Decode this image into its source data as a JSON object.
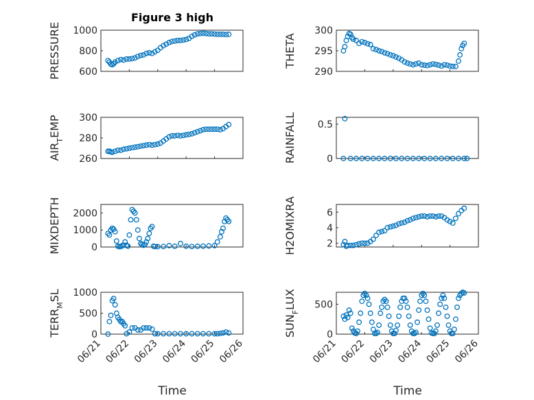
{
  "title": "Figure 3 high",
  "colors": {
    "marker": "#0072BD",
    "axis": "#262626",
    "grid": "#d9d9d9"
  },
  "chart_data": [
    {
      "type": "scatter",
      "ylabel_main": "PRESSURE",
      "ylabel_sub": "",
      "ylabel_rest": "",
      "ylim": [
        600,
        1000
      ],
      "yticks": [
        600,
        800,
        1000
      ],
      "xlim": [
        0,
        5
      ],
      "xticks": [
        "06/21",
        "06/22",
        "06/23",
        "06/24",
        "06/25",
        "06/26"
      ],
      "x": [
        0.25,
        0.3,
        0.35,
        0.4,
        0.45,
        0.5,
        0.6,
        0.7,
        0.8,
        0.9,
        1.0,
        1.1,
        1.2,
        1.3,
        1.4,
        1.5,
        1.6,
        1.7,
        1.8,
        1.9,
        2.0,
        2.1,
        2.2,
        2.3,
        2.4,
        2.5,
        2.6,
        2.7,
        2.8,
        2.9,
        3.0,
        3.1,
        3.2,
        3.3,
        3.4,
        3.5,
        3.6,
        3.7,
        3.8,
        3.9,
        4.0,
        4.1,
        4.2,
        4.3,
        4.4,
        4.5
      ],
      "y": [
        705,
        690,
        670,
        665,
        675,
        690,
        705,
        715,
        710,
        720,
        720,
        725,
        730,
        745,
        755,
        760,
        775,
        780,
        775,
        790,
        805,
        830,
        850,
        865,
        880,
        890,
        895,
        900,
        900,
        905,
        910,
        920,
        940,
        955,
        965,
        968,
        970,
        968,
        965,
        965,
        962,
        960,
        960,
        960,
        958,
        960
      ]
    },
    {
      "type": "scatter",
      "ylabel_main": "THETA",
      "ylabel_sub": "",
      "ylabel_rest": "",
      "ylim": [
        290,
        300
      ],
      "yticks": [
        290,
        295,
        300
      ],
      "xlim": [
        0,
        5
      ],
      "xticks": [
        "06/21",
        "06/22",
        "06/23",
        "06/24",
        "06/25",
        "06/26"
      ],
      "x": [
        0.25,
        0.3,
        0.35,
        0.4,
        0.45,
        0.5,
        0.55,
        0.6,
        0.7,
        0.8,
        0.9,
        1.0,
        1.1,
        1.2,
        1.3,
        1.4,
        1.5,
        1.6,
        1.7,
        1.8,
        1.9,
        2.0,
        2.1,
        2.2,
        2.3,
        2.4,
        2.5,
        2.6,
        2.7,
        2.8,
        2.9,
        3.0,
        3.1,
        3.2,
        3.3,
        3.4,
        3.5,
        3.6,
        3.7,
        3.8,
        3.9,
        4.0,
        4.1,
        4.2,
        4.3,
        4.35,
        4.4,
        4.45,
        4.5
      ],
      "y": [
        295,
        296,
        297.5,
        298.5,
        299.2,
        299,
        298.2,
        297.8,
        297.5,
        296.8,
        297.2,
        297,
        296.7,
        296.5,
        295.5,
        295.3,
        295,
        294.8,
        294.5,
        294.3,
        294,
        293.8,
        293.5,
        293.2,
        292.8,
        292.3,
        292,
        291.8,
        291.6,
        291.8,
        292,
        291.6,
        291.5,
        291.4,
        291.6,
        291.8,
        291.7,
        291.5,
        291.3,
        291.6,
        291.5,
        291.3,
        291.2,
        291.2,
        292.5,
        294,
        295.5,
        296.3,
        296.8
      ]
    },
    {
      "type": "scatter",
      "ylabel_main": "AIR",
      "ylabel_sub": "T",
      "ylabel_rest": "EMP",
      "ylim": [
        260,
        300
      ],
      "yticks": [
        260,
        280,
        300
      ],
      "xlim": [
        0,
        5
      ],
      "xticks": [
        "06/21",
        "06/22",
        "06/23",
        "06/24",
        "06/25",
        "06/26"
      ],
      "x": [
        0.25,
        0.3,
        0.35,
        0.4,
        0.5,
        0.6,
        0.7,
        0.8,
        0.9,
        1.0,
        1.1,
        1.2,
        1.3,
        1.4,
        1.5,
        1.6,
        1.7,
        1.8,
        1.9,
        2.0,
        2.1,
        2.2,
        2.3,
        2.4,
        2.5,
        2.6,
        2.7,
        2.8,
        2.9,
        3.0,
        3.1,
        3.2,
        3.3,
        3.4,
        3.5,
        3.6,
        3.7,
        3.8,
        3.9,
        4.0,
        4.1,
        4.2,
        4.3,
        4.4,
        4.5
      ],
      "y": [
        267,
        267,
        266.5,
        266,
        267,
        268,
        268,
        269,
        269.5,
        270,
        270.5,
        271,
        271.5,
        272,
        272.5,
        273,
        273.5,
        273,
        273.5,
        274,
        275,
        277,
        279,
        281,
        282,
        282,
        282.5,
        282,
        282.5,
        283,
        283.5,
        284,
        285,
        286,
        287,
        288,
        288.5,
        288.5,
        288.5,
        288.5,
        288.5,
        288,
        289,
        291,
        293
      ]
    },
    {
      "type": "scatter",
      "ylabel_main": "RAINFALL",
      "ylabel_sub": "",
      "ylabel_rest": "",
      "ylim": [
        0,
        0.6
      ],
      "yticks": [
        0,
        0.5
      ],
      "xlim": [
        0,
        5
      ],
      "xticks": [
        "06/21",
        "06/22",
        "06/23",
        "06/24",
        "06/25",
        "06/26"
      ],
      "x": [
        0.25,
        0.3,
        0.5,
        0.7,
        0.9,
        1.1,
        1.3,
        1.5,
        1.7,
        1.9,
        2.1,
        2.3,
        2.5,
        2.7,
        2.9,
        3.1,
        3.3,
        3.5,
        3.7,
        3.9,
        4.1,
        4.3,
        4.5,
        4.6
      ],
      "y": [
        0,
        0.58,
        0,
        0,
        0,
        0,
        0,
        0,
        0,
        0,
        0,
        0,
        0,
        0,
        0,
        0,
        0,
        0,
        0,
        0,
        0,
        0,
        0,
        0
      ]
    },
    {
      "type": "scatter",
      "ylabel_main": "MIXDEPTH",
      "ylabel_sub": "",
      "ylabel_rest": "",
      "ylim": [
        0,
        2500
      ],
      "yticks": [
        0,
        1000,
        2000
      ],
      "xlim": [
        0,
        5
      ],
      "xticks": [
        "06/21",
        "06/22",
        "06/23",
        "06/24",
        "06/25",
        "06/26"
      ],
      "x": [
        0.25,
        0.3,
        0.35,
        0.4,
        0.45,
        0.5,
        0.55,
        0.6,
        0.65,
        0.7,
        0.75,
        0.8,
        0.85,
        0.9,
        0.95,
        1.0,
        1.05,
        1.1,
        1.15,
        1.2,
        1.25,
        1.3,
        1.35,
        1.4,
        1.45,
        1.5,
        1.55,
        1.6,
        1.65,
        1.7,
        1.75,
        1.8,
        1.85,
        1.9,
        2.0,
        2.2,
        2.4,
        2.6,
        2.8,
        3.0,
        3.2,
        3.4,
        3.6,
        3.8,
        4.0,
        4.1,
        4.2,
        4.25,
        4.3,
        4.35,
        4.4,
        4.45,
        4.5
      ],
      "y": [
        800,
        700,
        1000,
        1100,
        1050,
        900,
        350,
        50,
        20,
        30,
        80,
        100,
        300,
        100,
        50,
        700,
        1600,
        2200,
        2100,
        2000,
        1600,
        1000,
        500,
        200,
        150,
        100,
        150,
        300,
        500,
        800,
        1100,
        1200,
        50,
        30,
        20,
        30,
        80,
        40,
        200,
        50,
        30,
        40,
        50,
        60,
        80,
        300,
        600,
        900,
        1100,
        1500,
        1700,
        1600,
        1500
      ]
    },
    {
      "type": "scatter",
      "ylabel_main": "H2OMIXRA",
      "ylabel_sub": "",
      "ylabel_rest": "",
      "ylim": [
        1.5,
        7
      ],
      "yticks": [
        2,
        4,
        6
      ],
      "xlim": [
        0,
        5
      ],
      "xticks": [
        "06/21",
        "06/22",
        "06/23",
        "06/24",
        "06/25",
        "06/26"
      ],
      "x": [
        0.25,
        0.3,
        0.35,
        0.4,
        0.5,
        0.6,
        0.7,
        0.8,
        0.9,
        1.0,
        1.1,
        1.2,
        1.3,
        1.4,
        1.5,
        1.6,
        1.7,
        1.8,
        1.9,
        2.0,
        2.1,
        2.2,
        2.3,
        2.4,
        2.5,
        2.6,
        2.7,
        2.8,
        2.9,
        3.0,
        3.1,
        3.2,
        3.3,
        3.4,
        3.5,
        3.6,
        3.7,
        3.8,
        3.9,
        4.0,
        4.1,
        4.2,
        4.3,
        4.4,
        4.5
      ],
      "y": [
        1.8,
        2.2,
        1.6,
        1.7,
        1.7,
        1.7,
        1.8,
        1.9,
        2.0,
        2.0,
        2.0,
        2.2,
        2.5,
        3.0,
        3.4,
        3.5,
        3.6,
        4.0,
        4.1,
        4.2,
        4.3,
        4.5,
        4.6,
        4.7,
        4.9,
        5.0,
        5.2,
        5.3,
        5.4,
        5.5,
        5.5,
        5.4,
        5.5,
        5.5,
        5.4,
        5.5,
        5.5,
        5.3,
        5.0,
        4.8,
        4.6,
        5.2,
        5.8,
        6.2,
        6.5
      ]
    },
    {
      "type": "scatter",
      "ylabel_main": "TERR",
      "ylabel_sub": "M",
      "ylabel_rest": "SL",
      "ylim": [
        0,
        1000
      ],
      "yticks": [
        0,
        500,
        1000
      ],
      "xlim": [
        0,
        5
      ],
      "xticks": [
        "06/21",
        "06/22",
        "06/23",
        "06/24",
        "06/25",
        "06/26"
      ],
      "x": [
        0.25,
        0.3,
        0.35,
        0.4,
        0.45,
        0.5,
        0.55,
        0.6,
        0.65,
        0.7,
        0.75,
        0.8,
        0.85,
        0.9,
        1.0,
        1.1,
        1.2,
        1.3,
        1.4,
        1.5,
        1.6,
        1.7,
        1.8,
        1.9,
        2.0,
        2.2,
        2.4,
        2.6,
        2.8,
        3.0,
        3.2,
        3.4,
        3.6,
        3.8,
        4.0,
        4.1,
        4.2,
        4.3,
        4.4,
        4.5
      ],
      "y": [
        0,
        300,
        450,
        800,
        850,
        700,
        500,
        400,
        350,
        300,
        300,
        250,
        200,
        10,
        50,
        150,
        150,
        100,
        100,
        150,
        150,
        150,
        120,
        10,
        10,
        10,
        10,
        10,
        10,
        10,
        10,
        10,
        10,
        10,
        10,
        10,
        20,
        30,
        50,
        30
      ]
    },
    {
      "type": "scatter",
      "ylabel_main": "SUN",
      "ylabel_sub": "F",
      "ylabel_rest": "LUX",
      "ylim": [
        0,
        700
      ],
      "yticks": [
        0,
        500
      ],
      "xlim": [
        0,
        5
      ],
      "xticks": [
        "06/21",
        "06/22",
        "06/23",
        "06/24",
        "06/25",
        "06/26"
      ],
      "x": [
        0.25,
        0.3,
        0.35,
        0.4,
        0.45,
        0.5,
        0.55,
        0.6,
        0.65,
        0.7,
        0.75,
        0.8,
        0.85,
        0.9,
        0.95,
        1.0,
        1.05,
        1.1,
        1.15,
        1.2,
        1.25,
        1.3,
        1.35,
        1.4,
        1.45,
        1.5,
        1.55,
        1.6,
        1.65,
        1.7,
        1.75,
        1.8,
        1.85,
        1.9,
        1.95,
        2.0,
        2.05,
        2.1,
        2.15,
        2.2,
        2.25,
        2.3,
        2.35,
        2.4,
        2.45,
        2.5,
        2.55,
        2.6,
        2.65,
        2.7,
        2.75,
        2.8,
        2.85,
        2.9,
        2.95,
        3.0,
        3.05,
        3.1,
        3.15,
        3.2,
        3.25,
        3.3,
        3.35,
        3.4,
        3.45,
        3.5,
        3.55,
        3.6,
        3.65,
        3.7,
        3.75,
        3.8,
        3.85,
        3.9,
        3.95,
        4.0,
        4.05,
        4.1,
        4.15,
        4.2,
        4.25,
        4.3,
        4.35,
        4.4,
        4.45,
        4.5
      ],
      "y": [
        300,
        250,
        320,
        280,
        400,
        350,
        100,
        50,
        20,
        10,
        50,
        200,
        350,
        550,
        650,
        680,
        650,
        600,
        500,
        350,
        200,
        80,
        10,
        10,
        30,
        150,
        350,
        450,
        550,
        580,
        550,
        450,
        300,
        150,
        50,
        10,
        10,
        60,
        150,
        300,
        450,
        550,
        600,
        600,
        550,
        450,
        300,
        150,
        50,
        10,
        10,
        30,
        200,
        400,
        550,
        650,
        680,
        650,
        550,
        400,
        250,
        100,
        20,
        10,
        10,
        50,
        150,
        350,
        500,
        600,
        650,
        600,
        450,
        300,
        150,
        50,
        10,
        10,
        80,
        250,
        450,
        600,
        650,
        680,
        700,
        690
      ]
    }
  ]
}
